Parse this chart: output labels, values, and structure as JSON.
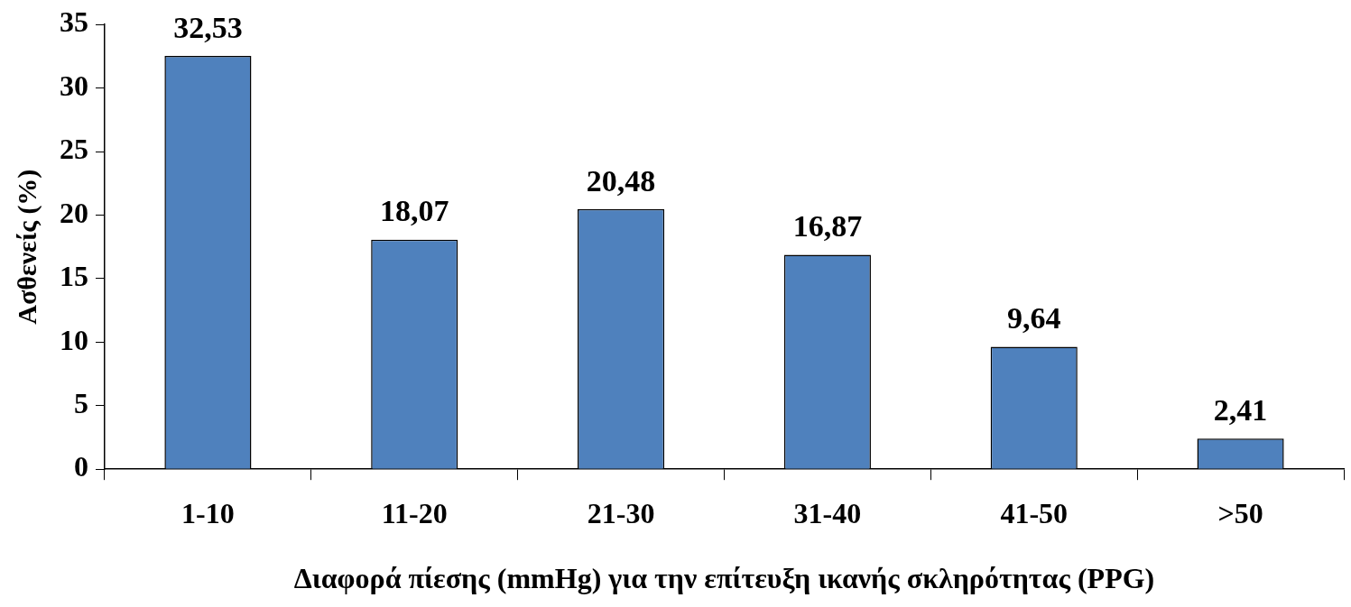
{
  "chart_data": {
    "type": "bar",
    "xlabel": "Διαφορά πίεσης (mmHg) για την επίτευξη ικανής σκληρότητας (PPG)",
    "ylabel": "Ασθενείς (%)",
    "categories": [
      "1-10",
      "11-20",
      "21-30",
      "31-40",
      "41-50",
      ">50"
    ],
    "values": [
      32.53,
      18.07,
      20.48,
      16.87,
      9.64,
      2.41
    ],
    "value_labels": [
      "32,53",
      "18,07",
      "20,48",
      "16,87",
      "9,64",
      "2,41"
    ],
    "color": "#4f81bd",
    "ylim": [
      0,
      35
    ],
    "yticks": [
      0,
      5,
      10,
      15,
      20,
      25,
      30,
      35
    ]
  }
}
